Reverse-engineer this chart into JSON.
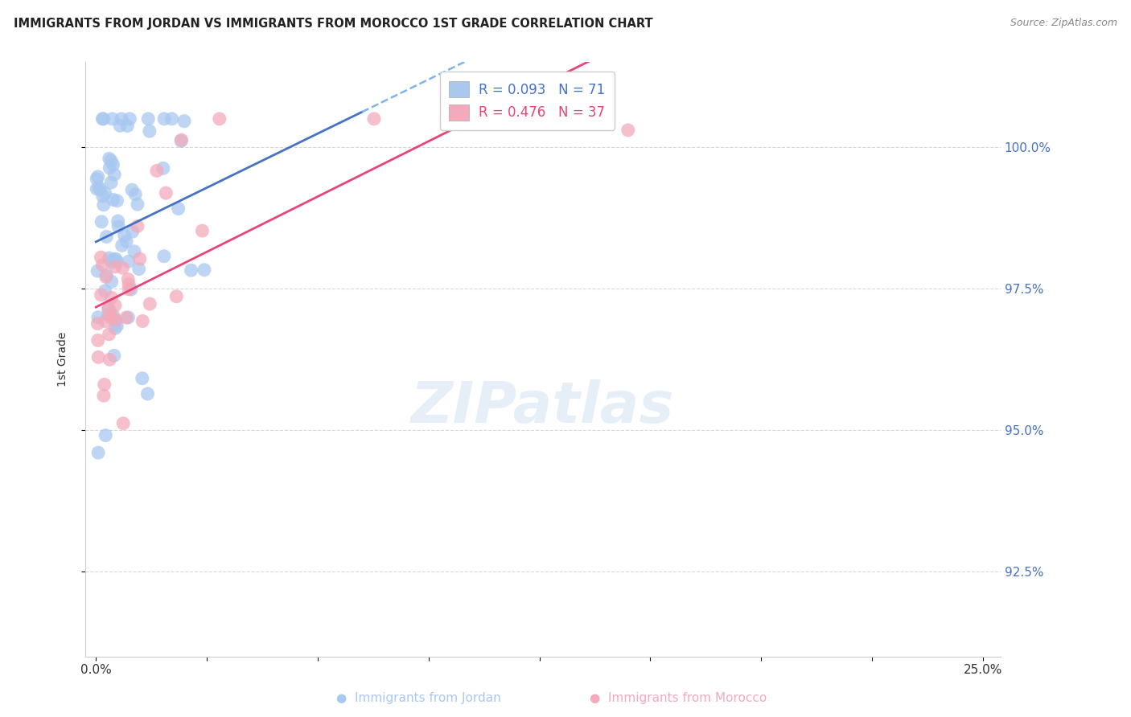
{
  "title": "IMMIGRANTS FROM JORDAN VS IMMIGRANTS FROM MOROCCO 1ST GRADE CORRELATION CHART",
  "source": "Source: ZipAtlas.com",
  "ylabel": "1st Grade",
  "R_jordan": 0.093,
  "N_jordan": 71,
  "R_morocco": 0.476,
  "N_morocco": 37,
  "color_jordan": "#A8C8F0",
  "color_morocco": "#F4AABB",
  "color_jordan_line": "#4472C4",
  "color_morocco_line": "#E84476",
  "color_dashed": "#7EB4EA",
  "background": "#FFFFFF",
  "grid_color": "#CCCCCC",
  "right_axis_color": "#4472C4",
  "xlim": [
    0.0,
    25.0
  ],
  "ylim": [
    91.0,
    101.5
  ],
  "yticks": [
    92.5,
    95.0,
    97.5,
    100.0
  ],
  "ytick_labels": [
    "92.5%",
    "95.0%",
    "97.5%",
    "100.0%"
  ]
}
